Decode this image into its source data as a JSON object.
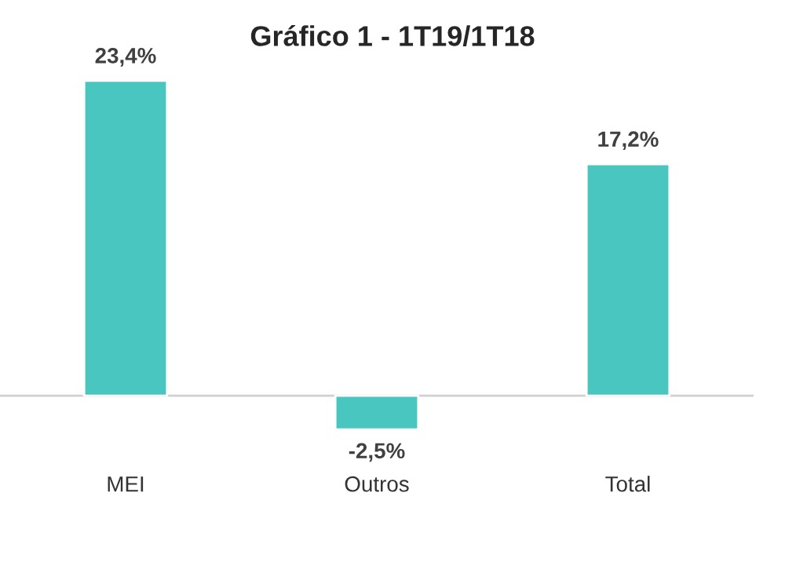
{
  "chart_data": {
    "type": "bar",
    "title": "Gráfico 1 - 1T19/1T18",
    "categories": [
      "MEI",
      "Outros",
      "Total"
    ],
    "values": [
      23.4,
      -2.5,
      17.2
    ],
    "value_labels": [
      "23,4%",
      "-2,5%",
      "17,2%"
    ],
    "color": "#4ac6c0",
    "grid": false,
    "legend": false
  }
}
